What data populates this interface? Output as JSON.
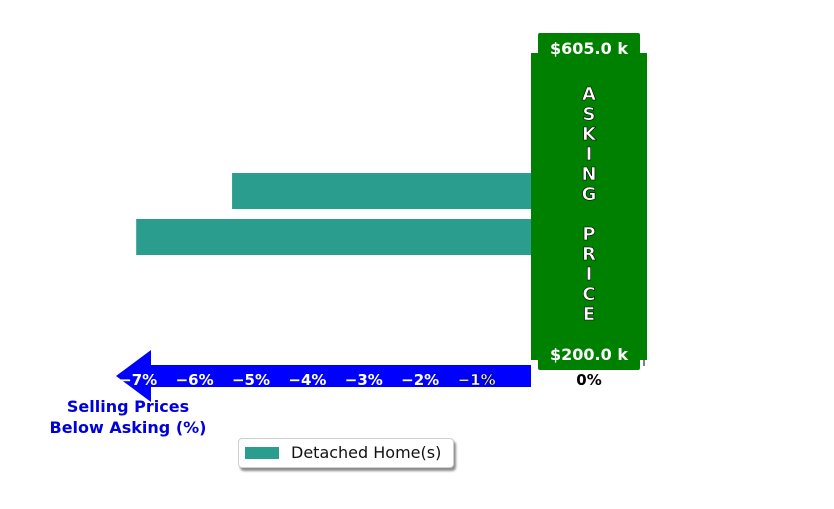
{
  "chart_data": {
    "type": "bar",
    "orientation": "horizontal",
    "categories": [
      "",
      ""
    ],
    "series": [
      {
        "name": "Detached Home(s)",
        "color": "#2a9d8f",
        "values": [
          -5.3,
          -7.0
        ]
      }
    ],
    "xlabel": "Selling Prices\nBelow Asking (%)",
    "xlabel_lines": [
      "Selling Prices",
      "Below Asking (%)"
    ],
    "xlim": [
      -8.2,
      2.0
    ],
    "xticks": [
      -7,
      -6,
      -5,
      -4,
      -3,
      -2,
      -1,
      0
    ],
    "xtick_labels": [
      "−7%",
      "−6%",
      "−5%",
      "−4%",
      "−3%",
      "−2%",
      "−1%",
      "0%"
    ],
    "grid": false,
    "legend": {
      "position": "bottom-center",
      "entries": [
        "Detached Home(s)"
      ]
    },
    "asking_price_panel": {
      "title_letters": [
        "A",
        "S",
        "K",
        "I",
        "N",
        "G",
        "",
        "P",
        "R",
        "I",
        "C",
        "E"
      ],
      "top_label": "$605.0 k",
      "bottom_label": "$200.0 k",
      "color": "#008000"
    },
    "arrow_color": "#0000ff",
    "caption_color": "#0000dd"
  }
}
